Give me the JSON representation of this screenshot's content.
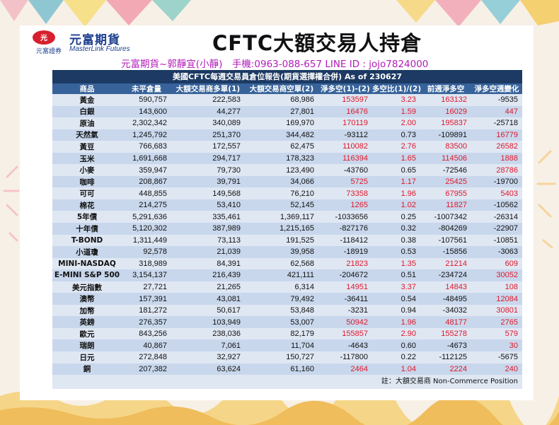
{
  "brand": {
    "name_cn": "元富期貨",
    "name_en": "MasterLink Futures",
    "sub": "元富證券",
    "mark": "光"
  },
  "title": "CFTC大額交易人持倉",
  "contact": "元富期貨~郭靜宜(小靜)　手機:0963-088-657  LINE ID : jojo7824000",
  "table": {
    "caption": "美國CFTC每週交易員倉位報告(期貨選擇權合併) As of  230627",
    "columns": [
      "商品",
      "未平倉量",
      "大額交易商多單(1)",
      "大額交易商空單(2)",
      "淨多空(1)-(2)",
      "多空比(1)/(2)",
      "前週淨多空",
      "淨多空週變化"
    ],
    "rows": [
      [
        "黃金",
        "590,757",
        "222,583",
        "68,986",
        "153597",
        "3.23",
        "163132",
        "-9535"
      ],
      [
        "白銀",
        "143,600",
        "44,277",
        "27,801",
        "16476",
        "1.59",
        "16029",
        "447"
      ],
      [
        "原油",
        "2,302,342",
        "340,089",
        "169,970",
        "170119",
        "2.00",
        "195837",
        "-25718"
      ],
      [
        "天然氣",
        "1,245,792",
        "251,370",
        "344,482",
        "-93112",
        "0.73",
        "-109891",
        "16779"
      ],
      [
        "黃豆",
        "766,683",
        "172,557",
        "62,475",
        "110082",
        "2.76",
        "83500",
        "26582"
      ],
      [
        "玉米",
        "1,691,668",
        "294,717",
        "178,323",
        "116394",
        "1.65",
        "114506",
        "1888"
      ],
      [
        "小麥",
        "359,947",
        "79,730",
        "123,490",
        "-43760",
        "0.65",
        "-72546",
        "28786"
      ],
      [
        "咖啡",
        "208,867",
        "39,791",
        "34,066",
        "5725",
        "1.17",
        "25425",
        "-19700"
      ],
      [
        "可可",
        "448,855",
        "149,568",
        "76,210",
        "73358",
        "1.96",
        "67955",
        "5403"
      ],
      [
        "棉花",
        "214,275",
        "53,410",
        "52,145",
        "1265",
        "1.02",
        "11827",
        "-10562"
      ],
      [
        "5年債",
        "5,291,636",
        "335,461",
        "1,369,117",
        "-1033656",
        "0.25",
        "-1007342",
        "-26314"
      ],
      [
        "十年債",
        "5,120,302",
        "387,989",
        "1,215,165",
        "-827176",
        "0.32",
        "-804269",
        "-22907"
      ],
      [
        "T-BOND",
        "1,311,449",
        "73,113",
        "191,525",
        "-118412",
        "0.38",
        "-107561",
        "-10851"
      ],
      [
        "小道瓊",
        "92,578",
        "21,039",
        "39,958",
        "-18919",
        "0.53",
        "-15856",
        "-3063"
      ],
      [
        "MINI-NASDAQ",
        "318,989",
        "84,391",
        "62,568",
        "21823",
        "1.35",
        "21214",
        "609"
      ],
      [
        "E-MINI S&P 500",
        "3,154,137",
        "216,439",
        "421,111",
        "-204672",
        "0.51",
        "-234724",
        "30052"
      ],
      [
        "美元指數",
        "27,721",
        "21,265",
        "6,314",
        "14951",
        "3.37",
        "14843",
        "108"
      ],
      [
        "澳幣",
        "157,391",
        "43,081",
        "79,492",
        "-36411",
        "0.54",
        "-48495",
        "12084"
      ],
      [
        "加幣",
        "181,272",
        "50,617",
        "53,848",
        "-3231",
        "0.94",
        "-34032",
        "30801"
      ],
      [
        "英鎊",
        "276,357",
        "103,949",
        "53,007",
        "50942",
        "1.96",
        "48177",
        "2765"
      ],
      [
        "歐元",
        "843,256",
        "238,036",
        "82,179",
        "155857",
        "2.90",
        "155278",
        "579"
      ],
      [
        "瑞朗",
        "40,867",
        "7,061",
        "11,704",
        "-4643",
        "0.60",
        "-4673",
        "30"
      ],
      [
        "日元",
        "272,848",
        "32,927",
        "150,727",
        "-117800",
        "0.22",
        "-112125",
        "-5675"
      ],
      [
        "銅",
        "207,382",
        "63,624",
        "61,160",
        "2464",
        "1.04",
        "2224",
        "240"
      ]
    ],
    "footnote": "註：大額交易商 Non-Commerce Position"
  },
  "colors": {
    "header_dark": "#1c3a63",
    "header": "#37639a",
    "row_light": "#dfe7f3",
    "row_dark": "#c8d7ec",
    "positive": "#e0182a",
    "contact": "#b21bb9",
    "brand": "#1e3f8f"
  }
}
